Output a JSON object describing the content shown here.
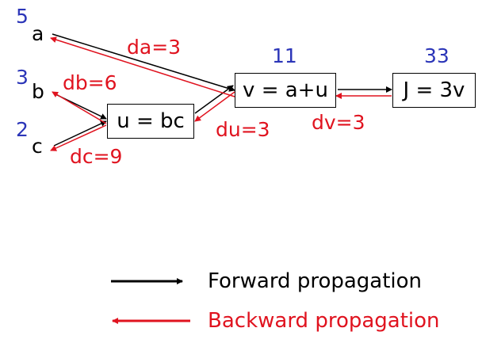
{
  "inputs": [
    {
      "name": "a",
      "value": "5"
    },
    {
      "name": "b",
      "value": "3"
    },
    {
      "name": "c",
      "value": "2"
    }
  ],
  "nodes": {
    "u": {
      "expr": "u = bc"
    },
    "v": {
      "expr": "v = a+u",
      "value": "11"
    },
    "j": {
      "expr": "J = 3v",
      "value": "33"
    }
  },
  "gradients": {
    "da": "da=3",
    "db": "db=6",
    "dc": "dc=9",
    "du": "du=3",
    "dv": "dv=3"
  },
  "legend": {
    "forward": "Forward propagation",
    "backward": "Backward propagation"
  },
  "colors": {
    "forward": "#000000",
    "backward": "#e0131f",
    "values": "#2b35b8"
  }
}
